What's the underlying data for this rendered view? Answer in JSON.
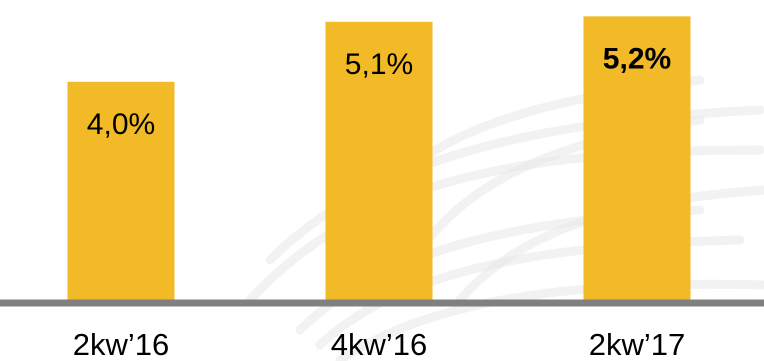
{
  "chart_data": {
    "type": "bar",
    "categories": [
      "2kw’16",
      "4kw’16",
      "2kw’17"
    ],
    "values": [
      4.0,
      5.1,
      5.2
    ],
    "data_labels": [
      "4,0%",
      "5,1%",
      "5,2%"
    ],
    "highlight_index": 2,
    "title": "",
    "xlabel": "",
    "ylabel": "",
    "ylim": [
      0,
      5.5
    ],
    "grid": false,
    "legend": "none",
    "colors": {
      "bar": "#F2BA27",
      "baseline": "#808080",
      "text": "#000000",
      "watermark": "#E8E8E8"
    }
  }
}
